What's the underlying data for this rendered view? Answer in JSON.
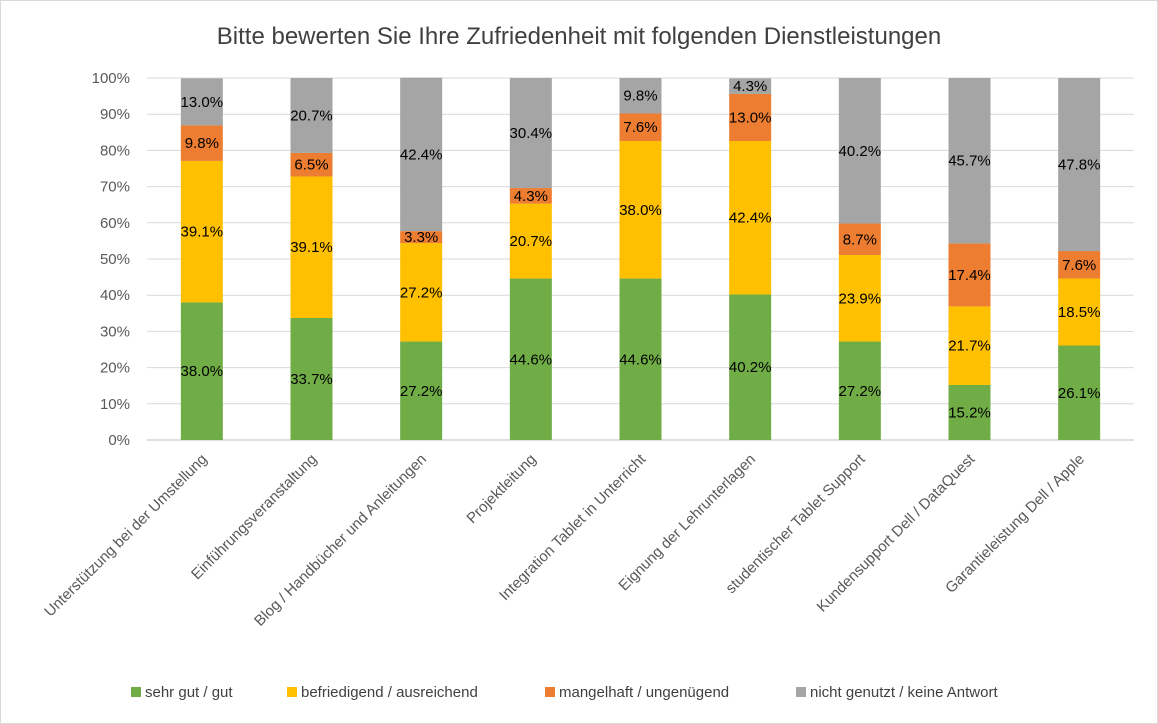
{
  "chart_data": {
    "type": "bar",
    "stacked": true,
    "percent_stacked": true,
    "title": "Bitte bewerten Sie Ihre Zufriedenheit mit folgenden Dienstleistungen",
    "xlabel": "",
    "ylabel": "",
    "ylim": [
      0,
      100
    ],
    "y_ticks": [
      "0%",
      "10%",
      "20%",
      "30%",
      "40%",
      "50%",
      "60%",
      "70%",
      "80%",
      "90%",
      "100%"
    ],
    "grid": true,
    "legend_position": "bottom",
    "categories": [
      "Unterstützung bei der Umstellung",
      "Einführungsveranstaltung",
      "Blog / Handbücher und Anleitungen",
      "Projektleitung",
      "Integration Tablet in Unterricht",
      "Eignung der Lehrunterlagen",
      "studentischer Tablet Support",
      "Kundensupport Dell / DataQuest",
      "Garantieleistung Dell / Apple"
    ],
    "series": [
      {
        "name": "sehr gut / gut",
        "color": "#70ad47",
        "values": [
          38.0,
          33.7,
          27.2,
          44.6,
          44.6,
          40.2,
          27.2,
          15.2,
          26.1
        ],
        "labels": [
          "38.0%",
          "33.7%",
          "27.2%",
          "44.6%",
          "44.6%",
          "40.2%",
          "27.2%",
          "15.2%",
          "26.1%"
        ]
      },
      {
        "name": "befriedigend / ausreichend",
        "color": "#ffc000",
        "values": [
          39.1,
          39.1,
          27.2,
          20.7,
          38.0,
          42.4,
          23.9,
          21.7,
          18.5
        ],
        "labels": [
          "39.1%",
          "39.1%",
          "27.2%",
          "20.7%",
          "38.0%",
          "42.4%",
          "23.9%",
          "21.7%",
          "18.5%"
        ]
      },
      {
        "name": "mangelhaft / ungenügend",
        "color": "#ed7d31",
        "values": [
          9.8,
          6.5,
          3.3,
          4.3,
          7.6,
          13.0,
          8.7,
          17.4,
          7.6
        ],
        "labels": [
          "9.8%",
          "6.5%",
          "3.3%",
          "4.3%",
          "7.6%",
          "13.0%",
          "8.7%",
          "17.4%",
          "7.6%"
        ]
      },
      {
        "name": "nicht genutzt / keine Antwort",
        "color": "#a5a5a5",
        "values": [
          13.0,
          20.7,
          42.4,
          30.4,
          9.8,
          4.3,
          40.2,
          45.7,
          47.8
        ],
        "labels": [
          "13.0%",
          "20.7%",
          "42.4%",
          "30.4%",
          "9.8%",
          "4.3%",
          "40.2%",
          "45.7%",
          "47.8%"
        ]
      }
    ]
  }
}
